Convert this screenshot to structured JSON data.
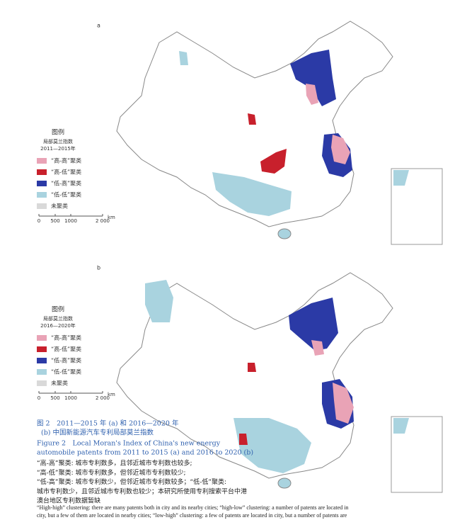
{
  "panels": [
    {
      "label": "a",
      "legend": {
        "title": "图例",
        "subtitle": "局部莫兰指数",
        "period": "2011—2015年",
        "items": [
          {
            "text": "“高-高”聚类",
            "color": "#e9a3b6"
          },
          {
            "text": "“高-低”聚类",
            "color": "#c8202c"
          },
          {
            "text": "“低-高”聚类",
            "color": "#2b3aa6"
          },
          {
            "text": "“低-低”聚类",
            "color": "#a9d3df"
          },
          {
            "text": "未聚类",
            "color": "#d9d9d9"
          }
        ]
      },
      "scale": [
        "0",
        "500",
        "1000",
        "2 000"
      ],
      "unit": "km"
    },
    {
      "label": "b",
      "legend": {
        "title": "图例",
        "subtitle": "局部莫兰指数",
        "period": "2016—2020年",
        "items": [
          {
            "text": "“高-高”聚类",
            "color": "#e9a3b6"
          },
          {
            "text": "“高-低”聚类",
            "color": "#c8202c"
          },
          {
            "text": "“低-高”聚类",
            "color": "#2b3aa6"
          },
          {
            "text": "“低-低”聚类",
            "color": "#a9d3df"
          },
          {
            "text": "未聚类",
            "color": "#d9d9d9"
          }
        ]
      },
      "scale": [
        "0",
        "500",
        "1000",
        "2 000"
      ],
      "unit": "km"
    }
  ],
  "caption": {
    "zh": [
      "图 2　2011—2015 年 (a) 和 2016—2020 年",
      "(b) 中国新能源汽车专利局部莫兰指数"
    ],
    "en": [
      "Figure 2　Local Moran's Index of China's new energy",
      "automobile patents from 2011 to 2015 (a) and 2016 to 2020 (b)"
    ]
  },
  "notes": [
    "“高-高”聚类: 城市专利数多，且邻近城市专利数也较多;",
    "“高-低”聚类: 城市专利数多，但邻近城市专利数较少;",
    "“低-高”聚类: 城市专利数少，但邻近城市专利数较多；“低-低”聚类:",
    "城市专利数少，且邻近城市专利数也较少；本研究所使用专利搜索平台中港",
    "澳台地区专利数据暂缺"
  ],
  "english_notes": [
    "“High-high” clustering: there are many patents both in city and its nearby cities; “high-low” clustering: a number of patents are located in",
    "city, but a few of them are located in nearby cities; “low-high” clustering: a few of patents are located in city, but a number of patents are"
  ]
}
